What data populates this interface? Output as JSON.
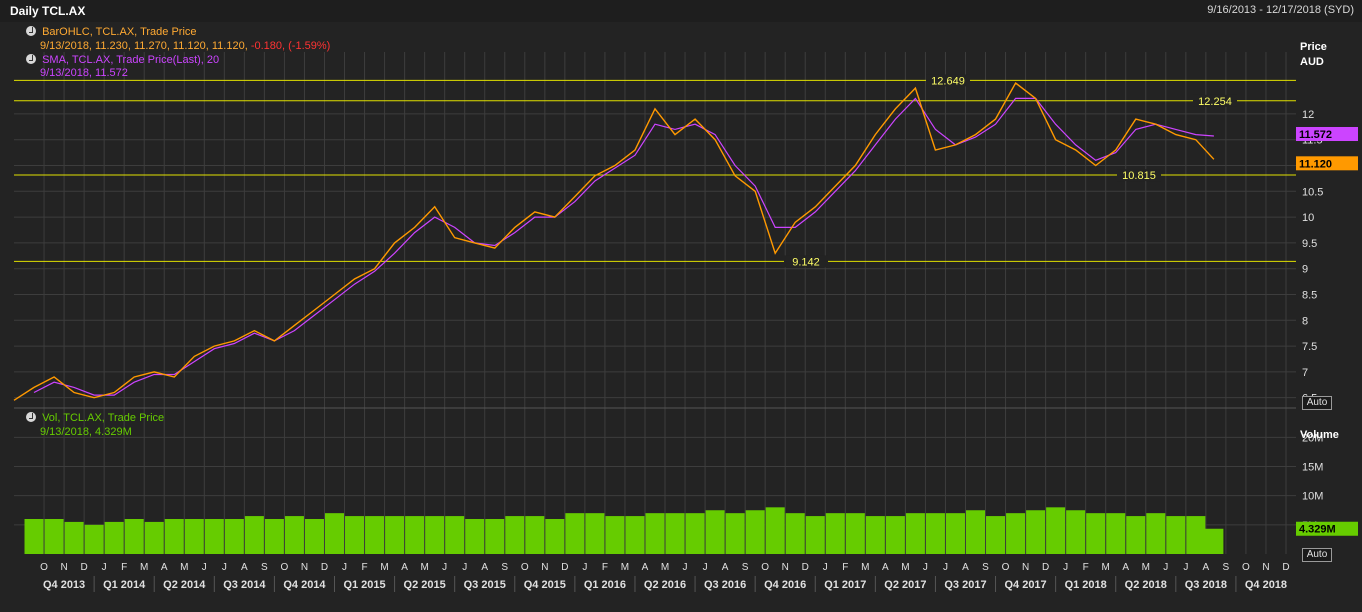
{
  "header": {
    "title": "Daily TCL.AX",
    "date_range": "9/16/2013 - 12/17/2018 (SYD)"
  },
  "legends": {
    "bar": {
      "label": "BarOHLC, TCL.AX, Trade Price",
      "values": "9/13/2018, 11.230, 11.270, 11.120, 11.120,",
      "change": "-0.180, (-1.59%)"
    },
    "sma": {
      "label": "SMA, TCL.AX, Trade Price(Last), 20",
      "values": "9/13/2018, 11.572"
    },
    "vol": {
      "label": "Vol, TCL.AX, Trade Price",
      "values": "9/13/2018, 4.329M"
    }
  },
  "price_axis": {
    "title": "Price",
    "unit": "AUD",
    "ticks": [
      "6.5",
      "7",
      "7.5",
      "8",
      "8.5",
      "9",
      "9.5",
      "10",
      "10.5",
      "11",
      "11.5",
      "12"
    ],
    "auto_label": "Auto"
  },
  "volume_axis": {
    "title": "Volume",
    "ticks": [
      "5M",
      "10M",
      "15M",
      "20M"
    ],
    "auto_label": "Auto"
  },
  "badges": {
    "sma": "11.572",
    "last": "11.120",
    "volume": "4.329M"
  },
  "levels": [
    {
      "value": 12.649,
      "label": "12.649"
    },
    {
      "value": 12.254,
      "label": "12.254"
    },
    {
      "value": 10.815,
      "label": "10.815"
    },
    {
      "value": 9.142,
      "label": "9.142"
    }
  ],
  "colors": {
    "price": "#ff9900",
    "sma": "#cc44ff",
    "volume": "#66cc00",
    "level": "#e0e000",
    "grid": "#3d3d3d",
    "change": "#ff3333",
    "sma_badge": "#cc44ff",
    "last_badge": "#ff9900"
  },
  "x_axis": {
    "months": [
      "O",
      "N",
      "D",
      "J",
      "F",
      "M",
      "A",
      "M",
      "J",
      "J",
      "A",
      "S",
      "O",
      "N",
      "D",
      "J",
      "F",
      "M",
      "A",
      "M",
      "J",
      "J",
      "A",
      "S",
      "O",
      "N",
      "D",
      "J",
      "F",
      "M",
      "A",
      "M",
      "J",
      "J",
      "A",
      "S",
      "O",
      "N",
      "D",
      "J",
      "F",
      "M",
      "A",
      "M",
      "J",
      "J",
      "A",
      "S",
      "O",
      "N",
      "D",
      "J",
      "F",
      "M",
      "A",
      "M",
      "J",
      "J",
      "A",
      "S",
      "O",
      "N",
      "D"
    ],
    "quarters": [
      "Q4 2013",
      "Q1 2014",
      "Q2 2014",
      "Q3 2014",
      "Q4 2014",
      "Q1 2015",
      "Q2 2015",
      "Q3 2015",
      "Q4 2015",
      "Q1 2016",
      "Q2 2016",
      "Q3 2016",
      "Q4 2016",
      "Q1 2017",
      "Q2 2017",
      "Q3 2017",
      "Q4 2017",
      "Q1 2018",
      "Q2 2018",
      "Q3 2018",
      "Q4 2018"
    ]
  },
  "chart_data": {
    "type": "line",
    "title": "Daily TCL.AX",
    "x_unit": "month",
    "x_start": "2013-09",
    "x_end": "2018-12",
    "price_ylim": [
      6.3,
      13.2
    ],
    "volume_ylim": [
      0,
      24
    ],
    "grid": true,
    "series": [
      {
        "name": "BarOHLC, TCL.AX, Trade Price",
        "x": [
          "2013-09-16",
          "2013-10",
          "2013-11",
          "2013-12",
          "2014-01",
          "2014-02",
          "2014-03",
          "2014-04",
          "2014-05",
          "2014-06",
          "2014-07",
          "2014-08",
          "2014-09",
          "2014-10",
          "2014-11",
          "2014-12",
          "2015-01",
          "2015-02",
          "2015-03",
          "2015-04",
          "2015-05",
          "2015-06",
          "2015-07",
          "2015-08",
          "2015-09",
          "2015-10",
          "2015-11",
          "2015-12",
          "2016-01",
          "2016-02",
          "2016-03",
          "2016-04",
          "2016-05",
          "2016-06",
          "2016-07",
          "2016-08",
          "2016-09",
          "2016-10",
          "2016-11",
          "2016-12",
          "2017-01",
          "2017-02",
          "2017-03",
          "2017-04",
          "2017-05",
          "2017-06",
          "2017-07",
          "2017-08",
          "2017-09",
          "2017-10",
          "2017-11",
          "2017-12",
          "2018-01",
          "2018-02",
          "2018-03",
          "2018-04",
          "2018-05",
          "2018-06",
          "2018-07",
          "2018-08",
          "2018-09-13"
        ],
        "values": [
          6.45,
          6.7,
          6.9,
          6.6,
          6.5,
          6.6,
          6.9,
          7.0,
          6.9,
          7.3,
          7.5,
          7.6,
          7.8,
          7.6,
          7.9,
          8.2,
          8.5,
          8.8,
          9.0,
          9.5,
          9.8,
          10.2,
          9.6,
          9.5,
          9.4,
          9.8,
          10.1,
          10.0,
          10.4,
          10.8,
          11.0,
          11.3,
          12.1,
          11.6,
          11.9,
          11.5,
          10.8,
          10.5,
          9.3,
          9.9,
          10.2,
          10.6,
          11.0,
          11.6,
          12.1,
          12.5,
          11.3,
          11.4,
          11.6,
          11.9,
          12.6,
          12.3,
          11.5,
          11.3,
          11.0,
          11.3,
          11.9,
          11.8,
          11.6,
          11.5,
          11.12
        ]
      },
      {
        "name": "SMA, TCL.AX, Trade Price(Last), 20",
        "x": [
          "2013-10",
          "2013-11",
          "2013-12",
          "2014-01",
          "2014-02",
          "2014-03",
          "2014-04",
          "2014-05",
          "2014-06",
          "2014-07",
          "2014-08",
          "2014-09",
          "2014-10",
          "2014-11",
          "2014-12",
          "2015-01",
          "2015-02",
          "2015-03",
          "2015-04",
          "2015-05",
          "2015-06",
          "2015-07",
          "2015-08",
          "2015-09",
          "2015-10",
          "2015-11",
          "2015-12",
          "2016-01",
          "2016-02",
          "2016-03",
          "2016-04",
          "2016-05",
          "2016-06",
          "2016-07",
          "2016-08",
          "2016-09",
          "2016-10",
          "2016-11",
          "2016-12",
          "2017-01",
          "2017-02",
          "2017-03",
          "2017-04",
          "2017-05",
          "2017-06",
          "2017-07",
          "2017-08",
          "2017-09",
          "2017-10",
          "2017-11",
          "2017-12",
          "2018-01",
          "2018-02",
          "2018-03",
          "2018-04",
          "2018-05",
          "2018-06",
          "2018-07",
          "2018-08",
          "2018-09-13"
        ],
        "values": [
          6.6,
          6.8,
          6.7,
          6.55,
          6.55,
          6.8,
          6.95,
          6.95,
          7.2,
          7.45,
          7.55,
          7.75,
          7.6,
          7.8,
          8.1,
          8.4,
          8.7,
          8.95,
          9.3,
          9.7,
          10.0,
          9.8,
          9.5,
          9.45,
          9.7,
          10.0,
          10.0,
          10.3,
          10.7,
          10.95,
          11.2,
          11.8,
          11.7,
          11.8,
          11.6,
          11.0,
          10.6,
          9.8,
          9.8,
          10.1,
          10.5,
          10.9,
          11.4,
          11.9,
          12.3,
          11.7,
          11.4,
          11.55,
          11.8,
          12.3,
          12.3,
          11.8,
          11.4,
          11.1,
          11.25,
          11.7,
          11.8,
          11.7,
          11.6,
          11.572
        ]
      },
      {
        "name": "Vol, TCL.AX, Trade Price",
        "x": [
          "2013-10",
          "2013-11",
          "2013-12",
          "2014-01",
          "2014-02",
          "2014-03",
          "2014-04",
          "2014-05",
          "2014-06",
          "2014-07",
          "2014-08",
          "2014-09",
          "2014-10",
          "2014-11",
          "2014-12",
          "2015-01",
          "2015-02",
          "2015-03",
          "2015-04",
          "2015-05",
          "2015-06",
          "2015-07",
          "2015-08",
          "2015-09",
          "2015-10",
          "2015-11",
          "2015-12",
          "2016-01",
          "2016-02",
          "2016-03",
          "2016-04",
          "2016-05",
          "2016-06",
          "2016-07",
          "2016-08",
          "2016-09",
          "2016-10",
          "2016-11",
          "2016-12",
          "2017-01",
          "2017-02",
          "2017-03",
          "2017-04",
          "2017-05",
          "2017-06",
          "2017-07",
          "2017-08",
          "2017-09",
          "2017-10",
          "2017-11",
          "2017-12",
          "2018-01",
          "2018-02",
          "2018-03",
          "2018-04",
          "2018-05",
          "2018-06",
          "2018-07",
          "2018-08",
          "2018-09-13"
        ],
        "values": [
          6,
          6,
          5.5,
          5,
          5.5,
          6,
          5.5,
          6,
          6,
          6,
          6,
          6.5,
          6,
          6.5,
          6,
          7,
          6.5,
          6.5,
          6.5,
          6.5,
          6.5,
          6.5,
          6,
          6,
          6.5,
          6.5,
          6,
          7,
          7,
          6.5,
          6.5,
          7,
          7,
          7,
          7.5,
          7,
          7.5,
          8,
          7,
          6.5,
          7,
          7,
          6.5,
          6.5,
          7,
          7,
          7,
          7.5,
          6.5,
          7,
          7.5,
          8,
          7.5,
          7,
          7,
          6.5,
          7,
          6.5,
          6.5,
          4.329
        ]
      }
    ],
    "reference_levels": [
      12.649,
      12.254,
      10.815,
      9.142
    ]
  }
}
